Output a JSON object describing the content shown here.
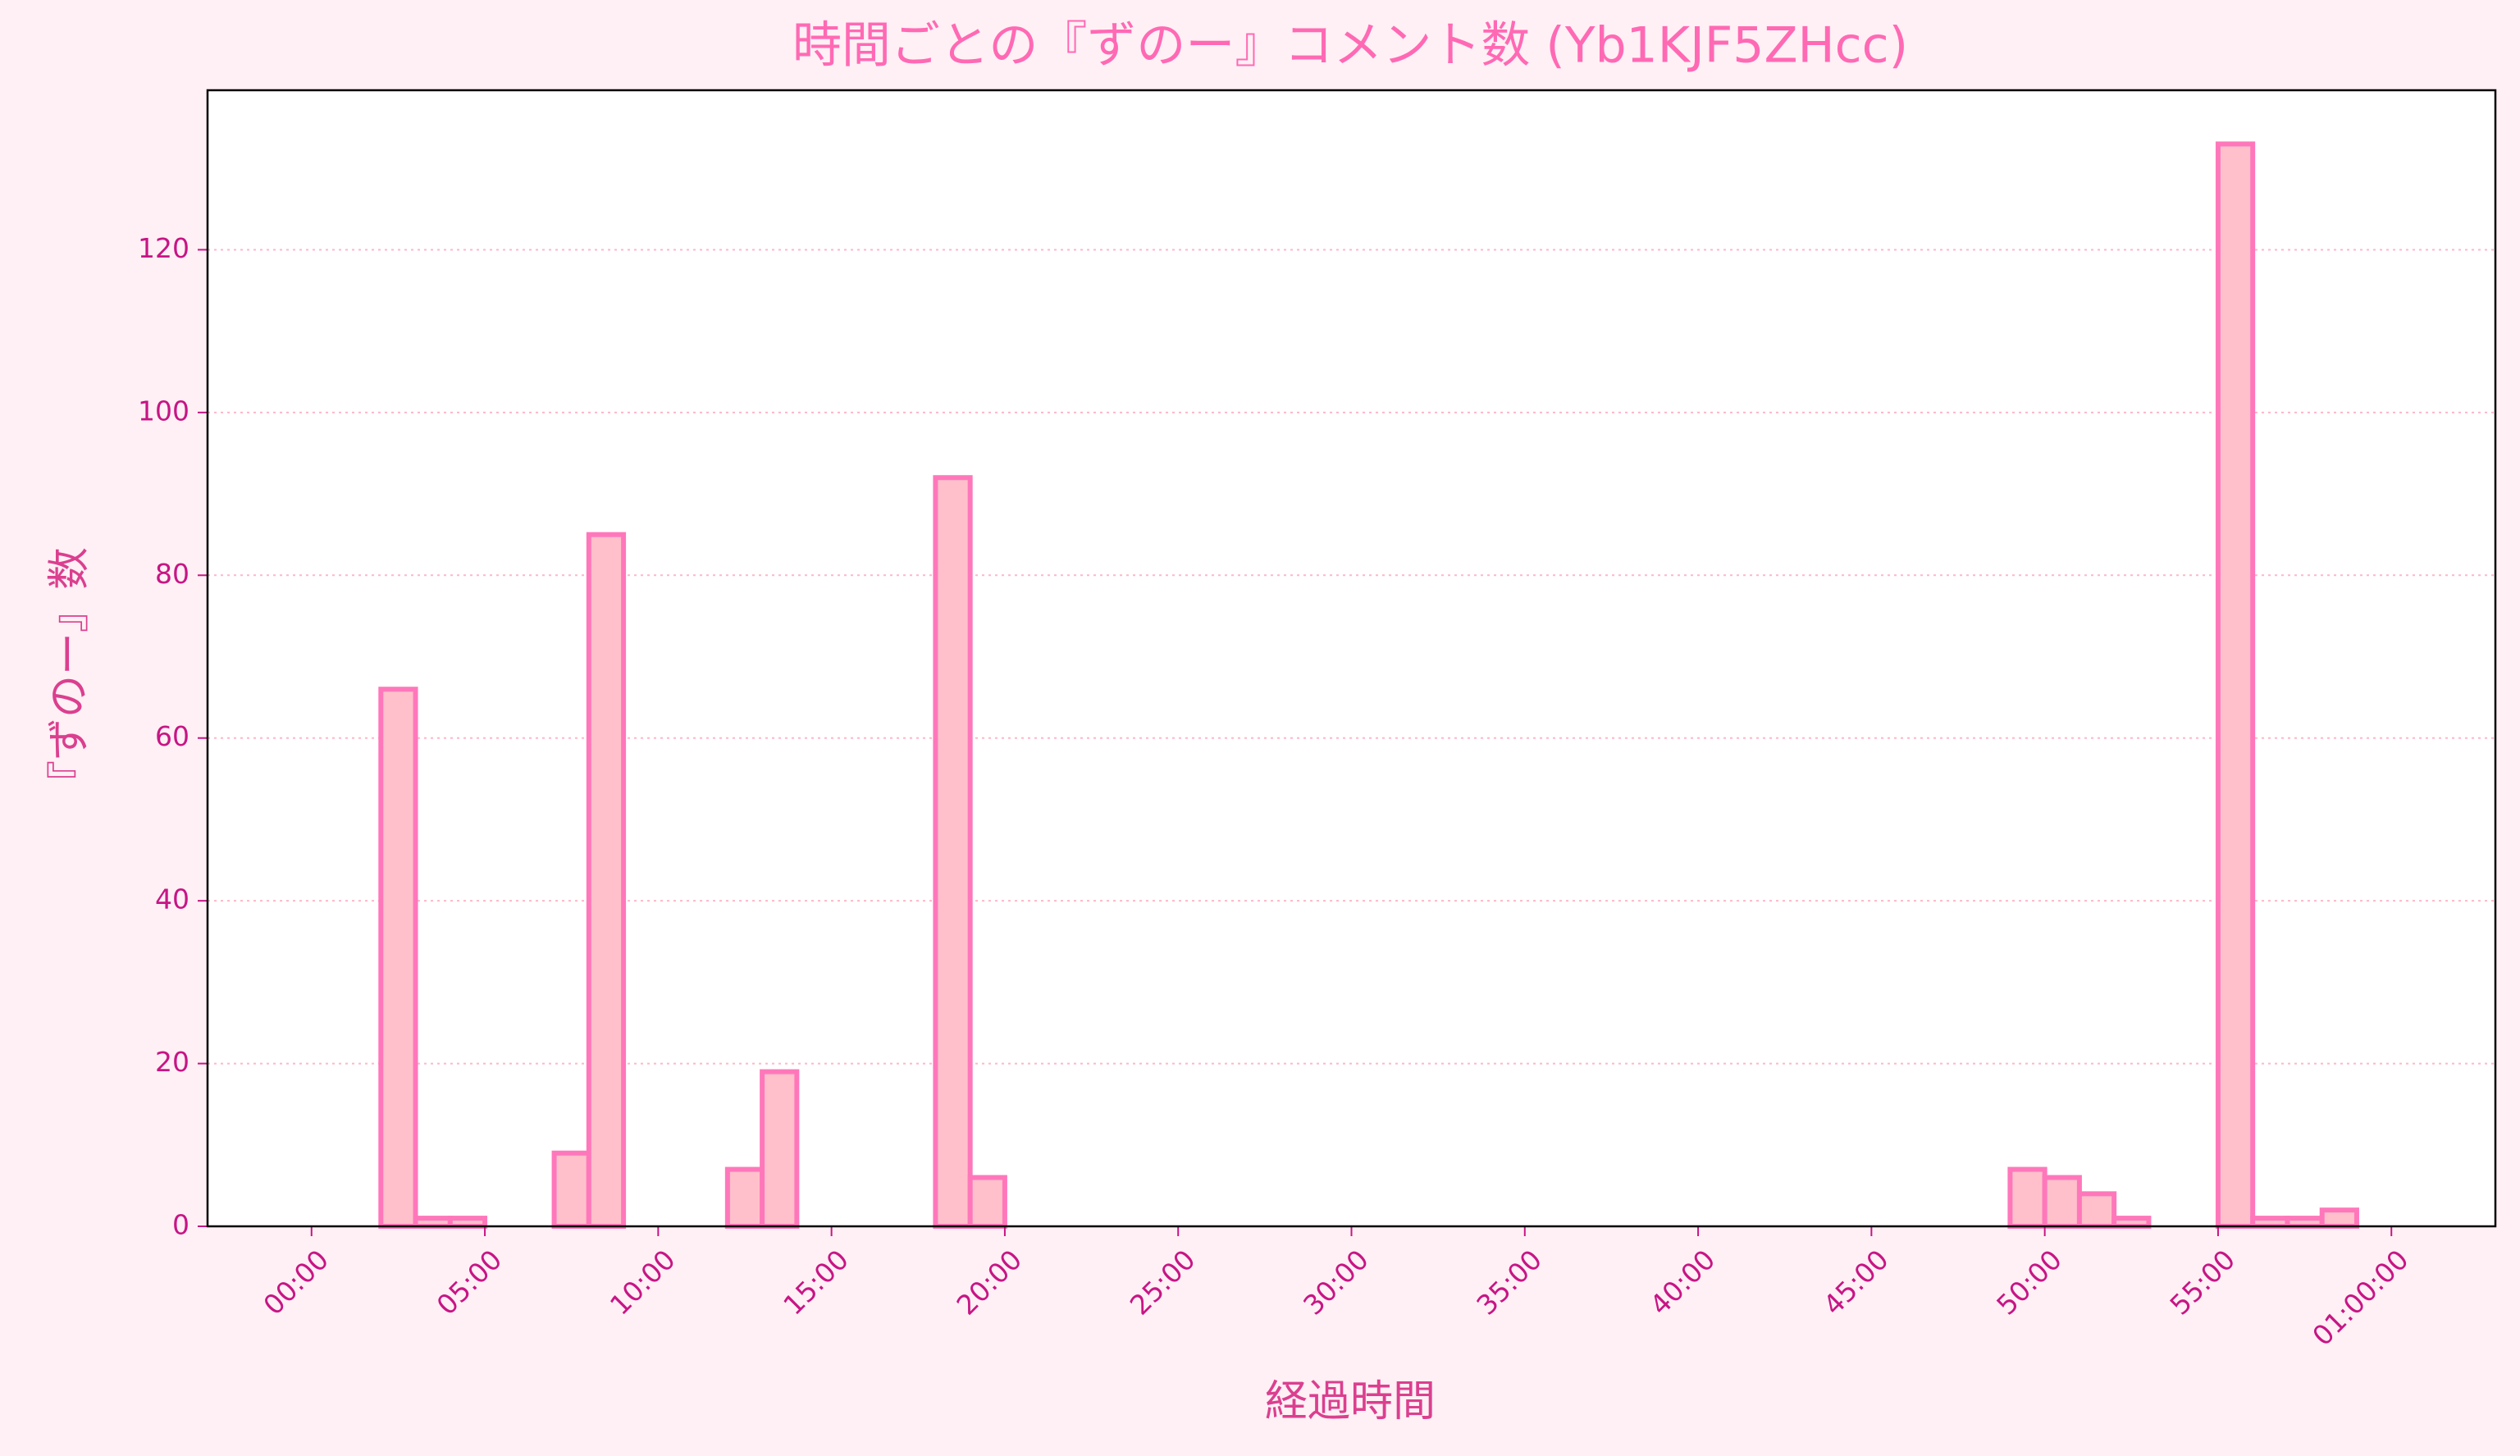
{
  "chart_data": {
    "type": "histogram",
    "title": "時間ごとの『ずのー』コメント数 (Yb1KJF5ZHcc)",
    "x_label": "経過時間",
    "y_label": "『ずのー』数",
    "bins": [
      0,
      1,
      2,
      3,
      4,
      5,
      6,
      7,
      8,
      9,
      10,
      11,
      12,
      13,
      14,
      15,
      16,
      17,
      18,
      19,
      20,
      21,
      22,
      23,
      24,
      25,
      26,
      27,
      28,
      29,
      30,
      31,
      32,
      33,
      34,
      35,
      36,
      37,
      38,
      39,
      40,
      41,
      42,
      43,
      44,
      45,
      46,
      47,
      48,
      49,
      50,
      51,
      52,
      53,
      54,
      55,
      56,
      57,
      58,
      59,
      60
    ],
    "values": [
      0,
      0,
      66,
      1,
      1,
      0,
      0,
      9,
      85,
      0,
      0,
      0,
      7,
      19,
      0,
      0,
      0,
      0,
      92,
      6,
      0,
      0,
      0,
      0,
      0,
      0,
      0,
      0,
      0,
      0,
      0,
      0,
      0,
      0,
      0,
      0,
      0,
      0,
      0,
      0,
      0,
      0,
      0,
      0,
      0,
      0,
      0,
      0,
      0,
      7,
      6,
      4,
      1,
      0,
      0,
      133,
      1,
      1,
      2,
      0
    ],
    "color": "#ffc0cb",
    "edge_color": "#ff77bb",
    "xlim": [
      -3,
      63
    ],
    "ylim": [
      0,
      139.6
    ],
    "xticks": [
      {
        "value": 0,
        "label": "00:00"
      },
      {
        "value": 5,
        "label": "05:00"
      },
      {
        "value": 10,
        "label": "10:00"
      },
      {
        "value": 15,
        "label": "15:00"
      },
      {
        "value": 20,
        "label": "20:00"
      },
      {
        "value": 25,
        "label": "25:00"
      },
      {
        "value": 30,
        "label": "30:00"
      },
      {
        "value": 35,
        "label": "35:00"
      },
      {
        "value": 40,
        "label": "40:00"
      },
      {
        "value": 45,
        "label": "45:00"
      },
      {
        "value": 50,
        "label": "50:00"
      },
      {
        "value": 55,
        "label": "55:00"
      },
      {
        "value": 60,
        "label": "01:00:00"
      }
    ],
    "yticks": [
      0,
      20,
      40,
      60,
      80,
      100,
      120
    ],
    "grid": true
  }
}
